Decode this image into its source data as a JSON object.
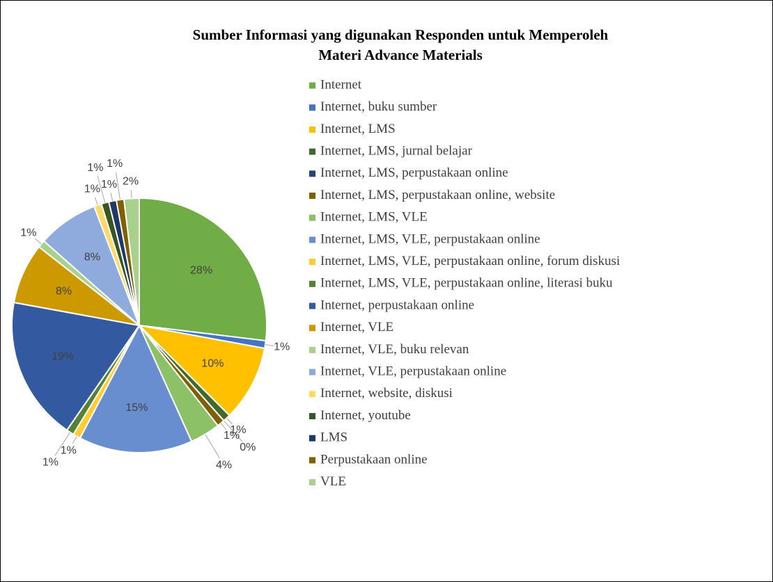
{
  "chart_data": {
    "type": "pie",
    "title": "Sumber Informasi yang digunakan Responden untuk Memperoleh Materi Advance Materials",
    "categories": [
      "Internet",
      "Internet, buku sumber",
      "Internet, LMS",
      "Internet, LMS, jurnal belajar",
      "Internet, LMS, perpustakaan online",
      "Internet, LMS, perpustakaan online, website",
      "Internet, LMS, VLE",
      "Internet, LMS, VLE, perpustakaan online",
      "Internet, LMS, VLE, perpustakaan online,  forum diskusi",
      "Internet, LMS, VLE, perpustakaan online, literasi buku",
      "Internet, perpustakaan online",
      "Internet, VLE",
      "Internet, VLE, buku relevan",
      "Internet, VLE, perpustakaan online",
      "Internet, website, diskusi",
      "Internet, youtube",
      "LMS",
      "Perpustakaan online",
      "VLE"
    ],
    "values": [
      28,
      1,
      10,
      1,
      0,
      1,
      4,
      15,
      1,
      1,
      19,
      8,
      1,
      8,
      1,
      1,
      1,
      1,
      2
    ],
    "value_labels": [
      "28%",
      "1%",
      "10%",
      "1%",
      "0%",
      "1%",
      "4%",
      "15%",
      "1%",
      "1%",
      "19%",
      "8%",
      "1%",
      "8%",
      "1%",
      "1%",
      "1%",
      "1%",
      "2%"
    ],
    "colors": [
      "#70ad47",
      "#4472c4",
      "#ffc000",
      "#43682b",
      "#264478",
      "#7f6000",
      "#8cc168",
      "#698ed0",
      "#ffcd33",
      "#548235",
      "#335aa1",
      "#cc9a00",
      "#a9d18e",
      "#8faadc",
      "#ffd966",
      "#375623",
      "#203864",
      "#806000",
      "#a9d18e"
    ],
    "legend": "right"
  }
}
